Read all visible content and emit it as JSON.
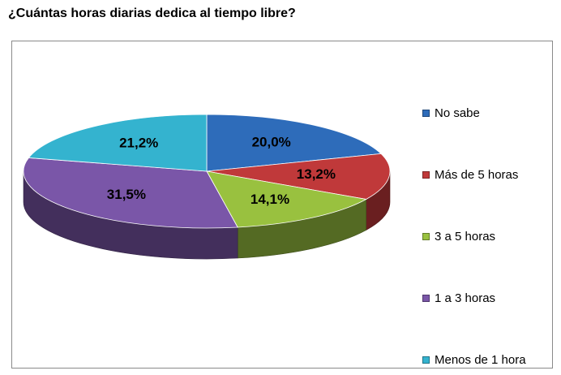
{
  "chart_data": {
    "type": "pie",
    "title": "¿Cuántas horas diarias dedica al tiempo libre?",
    "slices": [
      {
        "label": "No sabe",
        "value": 20.0,
        "display": "20,0%",
        "color": "#2e6cba"
      },
      {
        "label": "Más de 5 horas",
        "value": 13.2,
        "display": "13,2%",
        "color": "#c0393a"
      },
      {
        "label": "3 a 5 horas",
        "value": 14.1,
        "display": "14,1%",
        "color": "#99c13f"
      },
      {
        "label": "1 a 3 horas",
        "value": 31.5,
        "display": "31,5%",
        "color": "#7a56a8"
      },
      {
        "label": "Menos de 1 hora",
        "value": 21.2,
        "display": "21,2%",
        "color": "#34b3cf"
      }
    ],
    "legend_position": "right",
    "style": "3d-pie"
  }
}
